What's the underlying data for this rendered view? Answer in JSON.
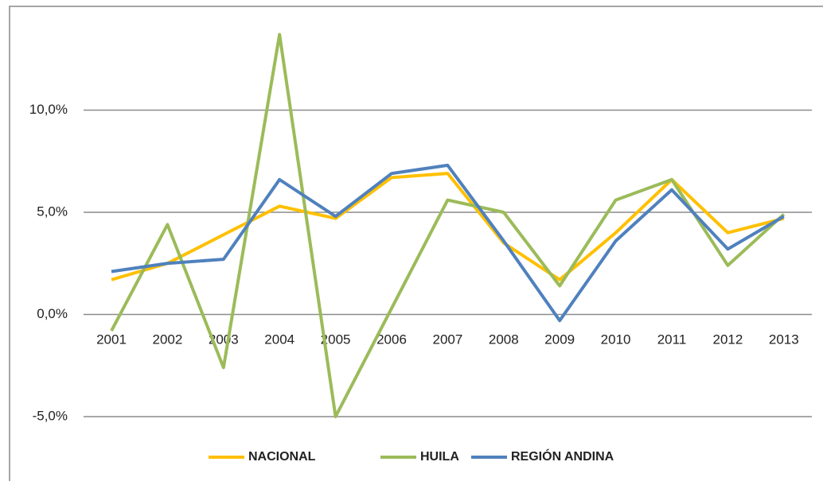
{
  "chart_data": {
    "type": "line",
    "categories": [
      "2001",
      "2002",
      "2003",
      "2004",
      "2005",
      "2006",
      "2007",
      "2008",
      "2009",
      "2010",
      "2011",
      "2012",
      "2013"
    ],
    "series": [
      {
        "name": "NACIONAL",
        "color": "#ffc000",
        "values": [
          1.7,
          2.5,
          3.9,
          5.3,
          4.7,
          6.7,
          6.9,
          3.5,
          1.7,
          4.0,
          6.6,
          4.0,
          4.7
        ]
      },
      {
        "name": "HUILA",
        "color": "#9bbb59",
        "values": [
          -0.8,
          4.4,
          -2.6,
          13.7,
          -5.0,
          0.3,
          5.6,
          5.0,
          1.4,
          5.6,
          6.6,
          2.4,
          4.9
        ]
      },
      {
        "name": "REGIÓN ANDINA",
        "color": "#4f81bd",
        "values": [
          2.1,
          2.5,
          2.7,
          6.6,
          4.8,
          6.9,
          7.3,
          3.6,
          -0.3,
          3.6,
          6.1,
          3.2,
          4.8
        ]
      }
    ],
    "ylim": [
      -5,
      15
    ],
    "yticks": [
      {
        "value": -5,
        "label": "-5,0%"
      },
      {
        "value": 0,
        "label": "0,0%"
      },
      {
        "value": 5,
        "label": "5,0%"
      },
      {
        "value": 10,
        "label": "10,0%"
      }
    ],
    "grid": true,
    "legend": "bottom"
  }
}
